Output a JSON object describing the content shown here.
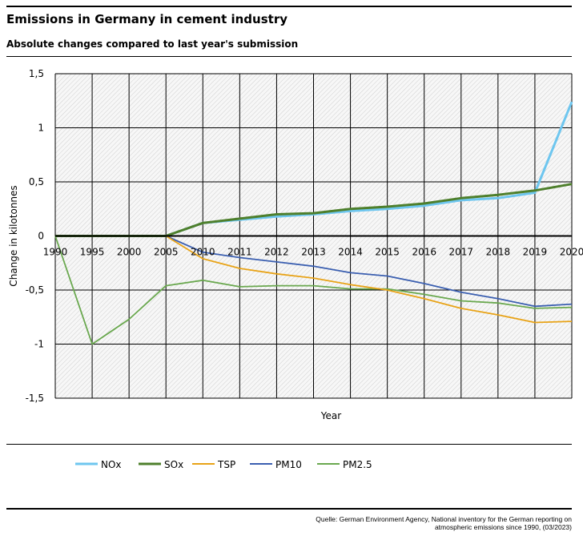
{
  "header": {
    "title": "Emissions in Germany in cement industry",
    "subtitle": "Absolute changes compared to last year's submission"
  },
  "source": "Quelle: German Environment Agency, National inventory for the German reporting on atmospheric emissions since 1990, (03/2023)",
  "colors": {
    "NOx": "#6ec6ef",
    "SOx": "#4e7f2c",
    "TSP": "#e8a317",
    "PM10": "#3b5fb0",
    "PM2.5": "#6aa84f"
  },
  "chart_data": {
    "type": "line",
    "xlabel": "Year",
    "ylabel": "Change in kilotonnes",
    "ylim": [
      -1.5,
      1.5
    ],
    "ytick_labels": [
      "1,5",
      "1",
      "0,5",
      "0",
      "-0,5",
      "-1",
      "-1,5"
    ],
    "yticks": [
      1.5,
      1,
      0.5,
      0,
      -0.5,
      -1,
      -1.5
    ],
    "x": [
      "1990",
      "1995",
      "2000",
      "2005",
      "2010",
      "2011",
      "2012",
      "2013",
      "2014",
      "2015",
      "2016",
      "2017",
      "2018",
      "2019",
      "2020"
    ],
    "grid": true,
    "hatched_background": true,
    "legend_position": "bottom",
    "series": [
      {
        "name": "NOx",
        "values": [
          0,
          0,
          0,
          0,
          0.12,
          0.15,
          0.18,
          0.2,
          0.23,
          0.25,
          0.28,
          0.33,
          0.35,
          0.4,
          1.24
        ]
      },
      {
        "name": "SOx",
        "values": [
          0,
          0,
          0,
          0,
          0.12,
          0.16,
          0.2,
          0.21,
          0.25,
          0.27,
          0.3,
          0.35,
          0.38,
          0.42,
          0.48
        ]
      },
      {
        "name": "TSP",
        "values": [
          0,
          0,
          0,
          0,
          -0.21,
          -0.3,
          -0.35,
          -0.39,
          -0.45,
          -0.5,
          -0.58,
          -0.67,
          -0.73,
          -0.8,
          -0.79
        ]
      },
      {
        "name": "PM10",
        "values": [
          0,
          0,
          0,
          0,
          -0.15,
          -0.2,
          -0.24,
          -0.28,
          -0.34,
          -0.37,
          -0.44,
          -0.52,
          -0.58,
          -0.65,
          -0.63
        ]
      },
      {
        "name": "PM2.5",
        "values": [
          0,
          -1,
          -0.77,
          -0.46,
          -0.41,
          -0.47,
          -0.46,
          -0.46,
          -0.49,
          -0.49,
          -0.54,
          -0.6,
          -0.62,
          -0.67,
          -0.66
        ]
      }
    ]
  }
}
